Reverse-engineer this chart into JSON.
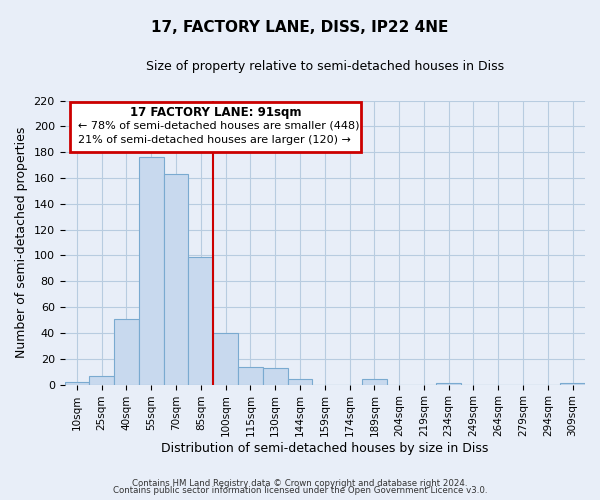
{
  "title": "17, FACTORY LANE, DISS, IP22 4NE",
  "subtitle": "Size of property relative to semi-detached houses in Diss",
  "xlabel": "Distribution of semi-detached houses by size in Diss",
  "ylabel": "Number of semi-detached properties",
  "bar_labels": [
    "10sqm",
    "25sqm",
    "40sqm",
    "55sqm",
    "70sqm",
    "85sqm",
    "100sqm",
    "115sqm",
    "130sqm",
    "144sqm",
    "159sqm",
    "174sqm",
    "189sqm",
    "204sqm",
    "219sqm",
    "234sqm",
    "249sqm",
    "264sqm",
    "279sqm",
    "294sqm",
    "309sqm"
  ],
  "bar_heights": [
    2,
    7,
    51,
    176,
    163,
    99,
    40,
    14,
    13,
    4,
    0,
    0,
    4,
    0,
    0,
    1,
    0,
    0,
    0,
    0,
    1
  ],
  "bar_color": "#c8d9ee",
  "bar_edge_color": "#7aaad0",
  "property_line_label": "17 FACTORY LANE: 91sqm",
  "pct_smaller": 78,
  "n_smaller": 448,
  "pct_larger": 21,
  "n_larger": 120,
  "annotation_box_edge": "#cc0000",
  "red_line_color": "#cc0000",
  "ylim": [
    0,
    220
  ],
  "yticks": [
    0,
    20,
    40,
    60,
    80,
    100,
    120,
    140,
    160,
    180,
    200,
    220
  ],
  "footer_line1": "Contains HM Land Registry data © Crown copyright and database right 2024.",
  "footer_line2": "Contains public sector information licensed under the Open Government Licence v3.0.",
  "bg_color": "#e8eef8",
  "grid_color": "#b8cce0"
}
